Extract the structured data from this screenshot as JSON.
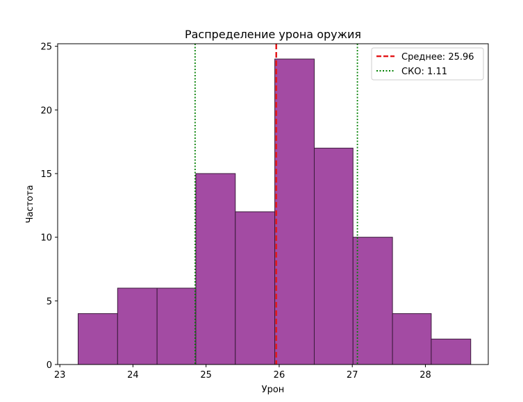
{
  "chart_data": {
    "type": "histogram",
    "title": "Распределение урона оружия",
    "xlabel": "Урон",
    "ylabel": "Частота",
    "xlim": [
      22.97,
      28.86
    ],
    "ylim": [
      0,
      25.2
    ],
    "xticks": [
      23,
      24,
      25,
      26,
      27,
      28
    ],
    "yticks": [
      0,
      5,
      10,
      15,
      20,
      25
    ],
    "bin_edges": [
      23.25,
      23.79,
      24.33,
      24.86,
      25.4,
      25.94,
      26.48,
      27.01,
      27.55,
      28.08,
      28.62
    ],
    "counts": [
      4,
      6,
      6,
      15,
      12,
      24,
      17,
      10,
      4,
      2
    ],
    "bar_color": "#a34ba3",
    "bar_edge_color": "#3a1a3a",
    "mean": 25.96,
    "std": 1.11,
    "mean_line_color": "#e41a1c",
    "std_line_color": "#008000",
    "legend": {
      "position": "upper right",
      "entries": [
        {
          "label": "Среднее: 25.96",
          "style": "dashed",
          "color": "#e41a1c"
        },
        {
          "label": "СКО: 1.11",
          "style": "dotted",
          "color": "#008000"
        }
      ]
    },
    "grid": false
  }
}
